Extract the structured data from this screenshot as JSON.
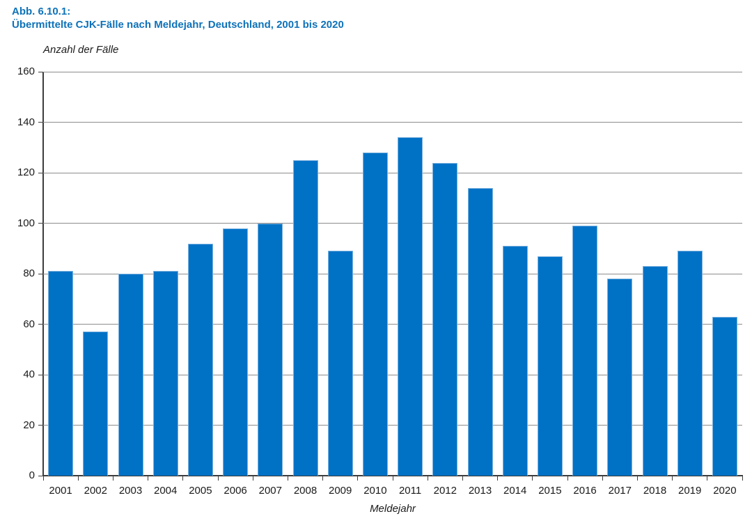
{
  "figure": {
    "label": "Abb. 6.10.1:",
    "title": "Übermittelte CJK-Fälle nach Meldejahr, Deutschland, 2001 bis 2020"
  },
  "chart_data": {
    "type": "bar",
    "title": "Übermittelte CJK-Fälle nach Meldejahr, Deutschland, 2001 bis 2020",
    "categories": [
      "2001",
      "2002",
      "2003",
      "2004",
      "2005",
      "2006",
      "2007",
      "2008",
      "2009",
      "2010",
      "2011",
      "2012",
      "2013",
      "2014",
      "2015",
      "2016",
      "2017",
      "2018",
      "2019",
      "2020"
    ],
    "values": [
      81,
      57,
      80,
      81,
      92,
      98,
      100,
      125,
      89,
      128,
      134,
      124,
      114,
      91,
      87,
      99,
      78,
      83,
      89,
      63
    ],
    "xlabel": "Meldejahr",
    "ylabel": "Anzahl der Fälle",
    "ylim": [
      0,
      160
    ],
    "yticks": [
      0,
      20,
      40,
      60,
      80,
      100,
      120,
      140,
      160
    ],
    "grid": true,
    "legend": "none",
    "colors": {
      "bar_fill": "#0072C6",
      "bar_edge": "#7EB2DE",
      "title_text": "#0E72B9",
      "grid_line": "#8C8C8C",
      "axis_line": "#3C3C3C",
      "label_text": "#1A1A1A"
    }
  }
}
